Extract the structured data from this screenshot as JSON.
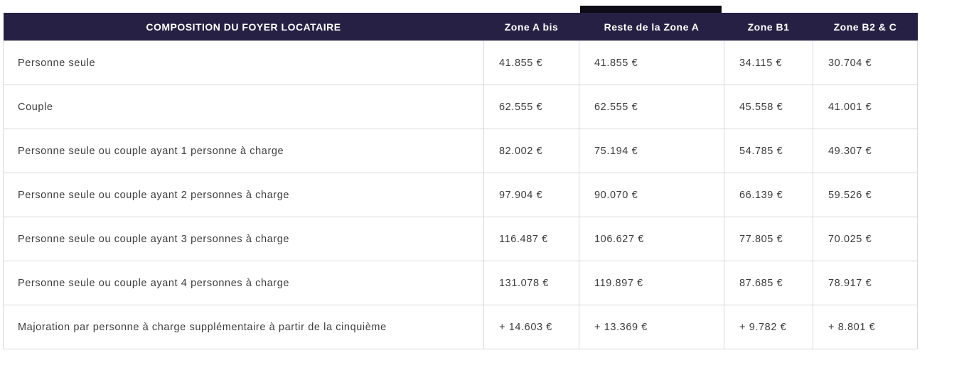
{
  "colors": {
    "header_bg": "#262144",
    "header_text": "#ffffff",
    "active_column_indicator": "#0e0c17",
    "body_text": "#3c3c3c",
    "cell_border": "#d9d9d9",
    "page_bg": "#ffffff"
  },
  "table": {
    "header": {
      "label_column": "COMPOSITION DU FOYER LOCATAIRE",
      "columns": [
        "Zone A bis",
        "Reste de la Zone A",
        "Zone B1",
        "Zone B2 & C"
      ],
      "active_column": "Reste de la Zone A"
    },
    "rows": [
      {
        "label": "Personne seule",
        "values": [
          "41.855 €",
          "41.855 €",
          "34.115 €",
          "30.704 €"
        ]
      },
      {
        "label": "Couple",
        "values": [
          "62.555 €",
          "62.555 €",
          "45.558 €",
          "41.001 €"
        ]
      },
      {
        "label": "Personne seule ou couple ayant 1 personne à charge",
        "values": [
          "82.002 €",
          "75.194 €",
          "54.785 €",
          "49.307 €"
        ]
      },
      {
        "label": "Personne seule ou couple ayant 2 personnes à charge",
        "values": [
          "97.904 €",
          "90.070 €",
          "66.139 €",
          "59.526 €"
        ]
      },
      {
        "label": "Personne seule ou couple ayant 3 personnes à charge",
        "values": [
          "116.487 €",
          "106.627 €",
          "77.805 €",
          "70.025 €"
        ]
      },
      {
        "label": "Personne seule ou couple ayant 4 personnes à charge",
        "values": [
          "131.078 €",
          "119.897 €",
          "87.685 €",
          "78.917 €"
        ]
      },
      {
        "label": "Majoration par personne à charge supplémentaire à partir de la cinquième",
        "values": [
          "+ 14.603 €",
          "+ 13.369 €",
          "+ 9.782 €",
          "+ 8.801 €"
        ]
      }
    ]
  },
  "chart_data": {
    "type": "table",
    "title": "COMPOSITION DU FOYER LOCATAIRE",
    "columns": [
      "COMPOSITION DU FOYER LOCATAIRE",
      "Zone A bis",
      "Reste de la Zone A",
      "Zone B1",
      "Zone B2 & C"
    ],
    "highlighted_column": "Reste de la Zone A",
    "rows": [
      [
        "Personne seule",
        "41.855 €",
        "41.855 €",
        "34.115 €",
        "30.704 €"
      ],
      [
        "Couple",
        "62.555 €",
        "62.555 €",
        "45.558 €",
        "41.001 €"
      ],
      [
        "Personne seule ou couple ayant 1 personne à charge",
        "82.002 €",
        "75.194 €",
        "54.785 €",
        "49.307 €"
      ],
      [
        "Personne seule ou couple ayant 2 personnes à charge",
        "97.904 €",
        "90.070 €",
        "66.139 €",
        "59.526 €"
      ],
      [
        "Personne seule ou couple ayant 3 personnes à charge",
        "116.487 €",
        "106.627 €",
        "77.805 €",
        "70.025 €"
      ],
      [
        "Personne seule ou couple ayant 4 personnes à charge",
        "131.078 €",
        "119.897 €",
        "87.685 €",
        "78.917 €"
      ],
      [
        "Majoration par personne à charge supplémentaire à partir de la cinquième",
        "+ 14.603 €",
        "+ 13.369 €",
        "+ 9.782 €",
        "+ 8.801 €"
      ]
    ]
  }
}
